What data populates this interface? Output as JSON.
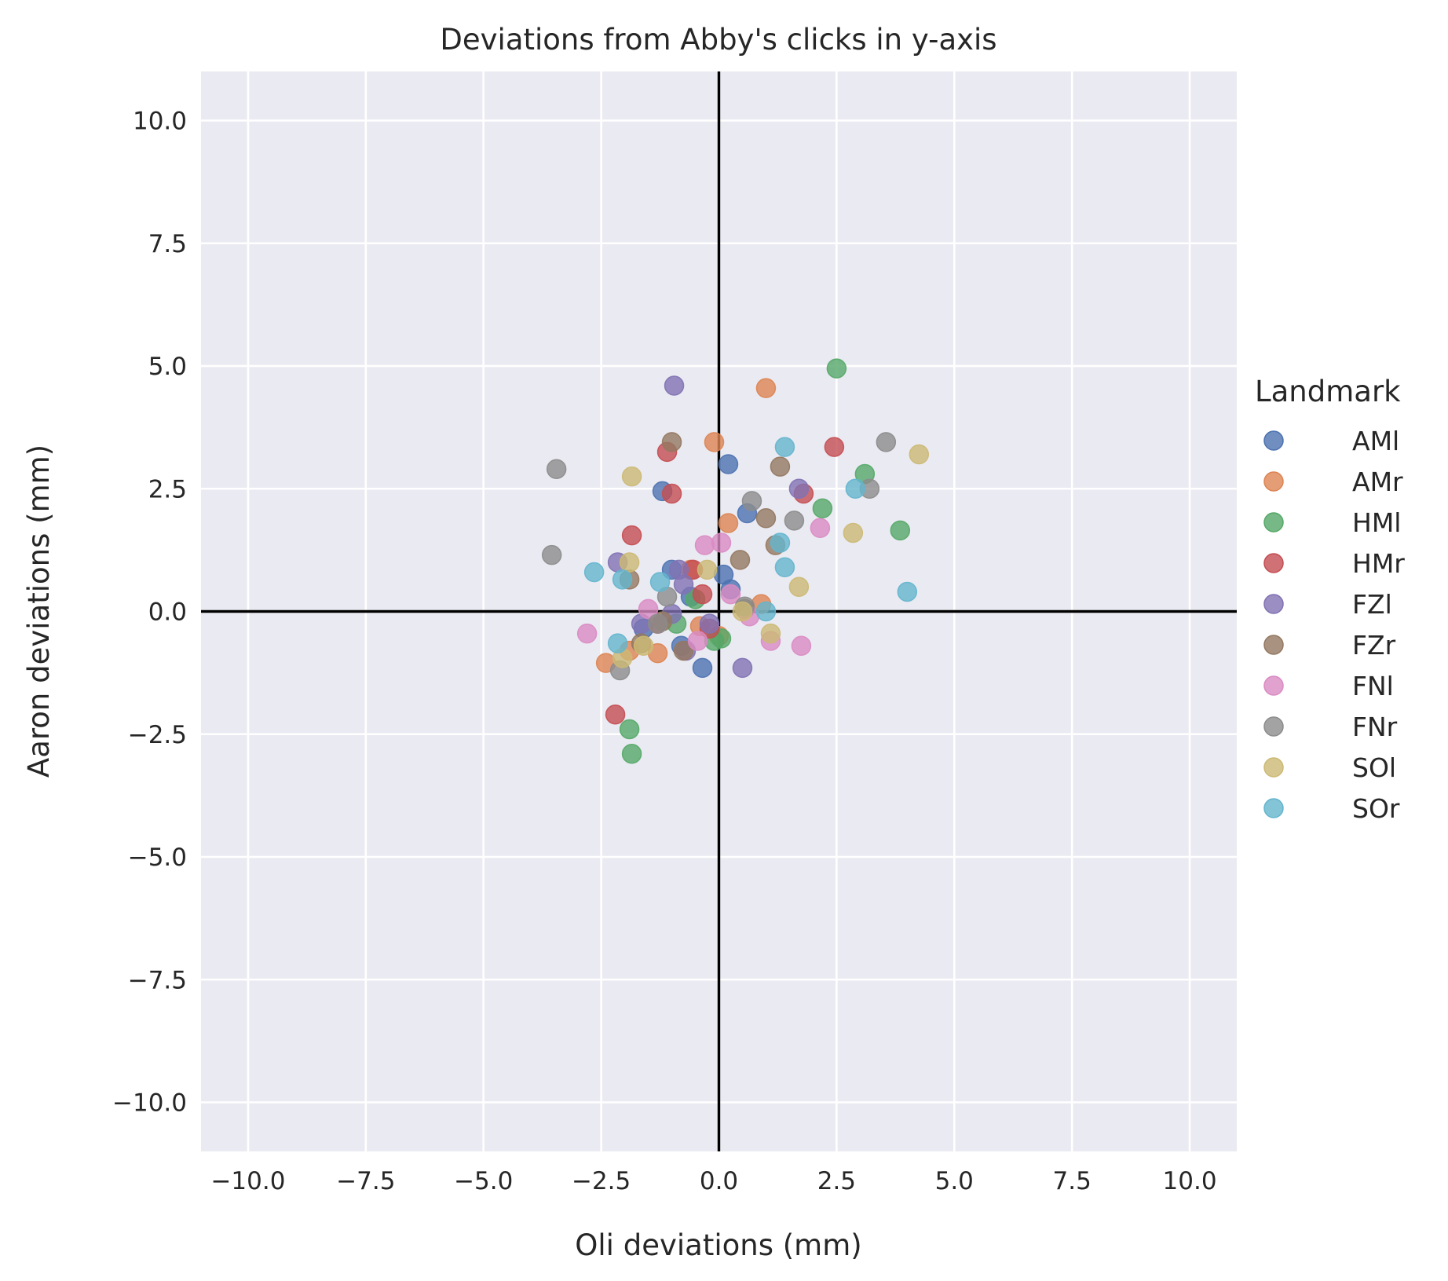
{
  "chart_data": {
    "type": "scatter",
    "title": "Deviations from Abby's clicks in y-axis",
    "xlabel": "Oli deviations (mm)",
    "ylabel": "Aaron deviations (mm)",
    "xlim": [
      -11,
      11
    ],
    "ylim": [
      -11,
      11
    ],
    "xticks": [
      -10,
      -7.5,
      -5,
      -2.5,
      0,
      2.5,
      5,
      7.5,
      10
    ],
    "yticks": [
      -10,
      -7.5,
      -5,
      -2.5,
      0,
      2.5,
      5,
      7.5,
      10
    ],
    "xtick_labels": [
      "−10.0",
      "−7.5",
      "−5.0",
      "−2.5",
      "0.0",
      "2.5",
      "5.0",
      "7.5",
      "10.0"
    ],
    "ytick_labels": [
      "−10.0",
      "−7.5",
      "−5.0",
      "−2.5",
      "0.0",
      "2.5",
      "5.0",
      "7.5",
      "10.0"
    ],
    "grid": true,
    "reference_lines": [
      {
        "axis": "x",
        "value": 0
      },
      {
        "axis": "y",
        "value": 0
      }
    ],
    "legend": {
      "title": "Landmark",
      "placement": "right"
    },
    "series": [
      {
        "name": "AMl",
        "color": "#4c72b0",
        "points": [
          [
            -1.2,
            2.45
          ],
          [
            0.2,
            3.0
          ],
          [
            0.6,
            2.0
          ],
          [
            0.1,
            0.75
          ],
          [
            0.25,
            0.45
          ],
          [
            -1.0,
            0.85
          ],
          [
            -0.35,
            -1.15
          ],
          [
            -0.6,
            0.3
          ],
          [
            -1.6,
            -0.35
          ],
          [
            -0.8,
            -0.7
          ]
        ]
      },
      {
        "name": "AMr",
        "color": "#dd8452",
        "points": [
          [
            1.0,
            4.55
          ],
          [
            -0.1,
            3.45
          ],
          [
            0.2,
            1.8
          ],
          [
            -2.4,
            -1.05
          ],
          [
            -1.3,
            -0.85
          ],
          [
            -0.4,
            -0.3
          ],
          [
            0.0,
            -0.5
          ],
          [
            0.9,
            0.15
          ],
          [
            -1.9,
            -0.8
          ],
          [
            -0.6,
            0.85
          ]
        ]
      },
      {
        "name": "HMl",
        "color": "#55a868",
        "points": [
          [
            2.5,
            4.95
          ],
          [
            3.1,
            2.8
          ],
          [
            2.2,
            2.1
          ],
          [
            3.85,
            1.65
          ],
          [
            -1.9,
            -2.4
          ],
          [
            -1.85,
            -2.9
          ],
          [
            -0.1,
            -0.6
          ],
          [
            -0.9,
            -0.25
          ],
          [
            -0.5,
            0.25
          ],
          [
            0.05,
            -0.55
          ]
        ]
      },
      {
        "name": "HMr",
        "color": "#c44e52",
        "points": [
          [
            2.45,
            3.35
          ],
          [
            -1.1,
            3.25
          ],
          [
            -1.0,
            2.4
          ],
          [
            1.8,
            2.4
          ],
          [
            -1.85,
            1.55
          ],
          [
            -2.2,
            -2.1
          ],
          [
            -0.35,
            0.35
          ],
          [
            -0.55,
            0.85
          ],
          [
            -1.3,
            -0.25
          ],
          [
            -0.2,
            -0.35
          ]
        ]
      },
      {
        "name": "FZl",
        "color": "#8172b3",
        "points": [
          [
            -0.95,
            4.6
          ],
          [
            1.7,
            2.5
          ],
          [
            -2.15,
            1.0
          ],
          [
            -0.85,
            0.85
          ],
          [
            -0.75,
            0.55
          ],
          [
            -1.65,
            -0.25
          ],
          [
            -1.0,
            -0.05
          ],
          [
            -0.7,
            -0.8
          ],
          [
            -0.2,
            -0.25
          ],
          [
            0.5,
            -1.15
          ]
        ]
      },
      {
        "name": "FZr",
        "color": "#937860",
        "points": [
          [
            -1.0,
            3.45
          ],
          [
            1.3,
            2.95
          ],
          [
            1.0,
            1.9
          ],
          [
            1.2,
            1.35
          ],
          [
            0.45,
            1.05
          ],
          [
            -1.9,
            0.65
          ],
          [
            -1.2,
            -0.2
          ],
          [
            -1.65,
            -0.65
          ],
          [
            -0.75,
            -0.8
          ],
          [
            0.55,
            0.05
          ]
        ]
      },
      {
        "name": "FNl",
        "color": "#da8bc3",
        "points": [
          [
            2.15,
            1.7
          ],
          [
            -0.3,
            1.35
          ],
          [
            0.05,
            1.4
          ],
          [
            -2.8,
            -0.45
          ],
          [
            1.75,
            -0.7
          ],
          [
            1.1,
            -0.6
          ],
          [
            0.65,
            -0.1
          ],
          [
            0.25,
            0.35
          ],
          [
            -1.5,
            0.05
          ],
          [
            -0.45,
            -0.6
          ]
        ]
      },
      {
        "name": "FNr",
        "color": "#8c8c8c",
        "points": [
          [
            3.55,
            3.45
          ],
          [
            3.2,
            2.5
          ],
          [
            -3.45,
            2.9
          ],
          [
            0.7,
            2.25
          ],
          [
            1.6,
            1.85
          ],
          [
            -3.55,
            1.15
          ],
          [
            -1.1,
            0.3
          ],
          [
            -1.3,
            -0.25
          ],
          [
            -2.1,
            -1.2
          ],
          [
            0.55,
            0.1
          ]
        ]
      },
      {
        "name": "SOl",
        "color": "#ccb974",
        "points": [
          [
            4.25,
            3.2
          ],
          [
            2.85,
            1.6
          ],
          [
            1.7,
            0.5
          ],
          [
            -1.85,
            2.75
          ],
          [
            -1.9,
            1.0
          ],
          [
            -0.25,
            0.85
          ],
          [
            0.5,
            0.0
          ],
          [
            1.1,
            -0.45
          ],
          [
            -2.05,
            -0.95
          ],
          [
            -1.6,
            -0.7
          ]
        ]
      },
      {
        "name": "SOr",
        "color": "#64b5cd",
        "points": [
          [
            1.4,
            3.35
          ],
          [
            2.9,
            2.5
          ],
          [
            1.3,
            1.4
          ],
          [
            1.4,
            0.9
          ],
          [
            4.0,
            0.4
          ],
          [
            -2.65,
            0.8
          ],
          [
            -2.05,
            0.65
          ],
          [
            -1.25,
            0.6
          ],
          [
            1.0,
            0.0
          ],
          [
            -2.15,
            -0.65
          ]
        ]
      }
    ]
  }
}
